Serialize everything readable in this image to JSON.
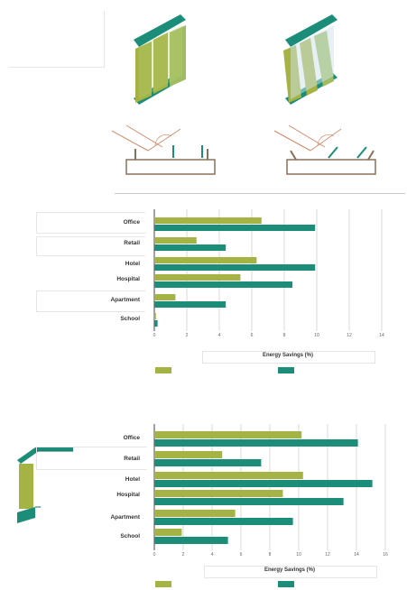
{
  "colors": {
    "olive": "#a4b344",
    "teal": "#1c8d79",
    "dark_teal": "#0e6e5e",
    "window_green": "#9fbd60",
    "sun_line": "#d18a6a"
  },
  "illustrations": {
    "left_icon": "vertical-fins-window-icon",
    "right_icon": "angled-fins-window-icon",
    "left_section": "fin-section-sun-angle-icon",
    "right_section": "angled-fin-section-sun-angle-icon",
    "bottom_left_icon": "overhang-fin-section-icon"
  },
  "chart_data": [
    {
      "type": "bar",
      "orientation": "horizontal",
      "categories": [
        "Office",
        "Retail",
        "Hotel",
        "Hospital",
        "Apartment",
        "School"
      ],
      "series": [
        {
          "name": "",
          "values": [
            6.6,
            2.6,
            6.3,
            5.3,
            1.3,
            0.1
          ]
        },
        {
          "name": "",
          "values": [
            9.9,
            4.4,
            9.9,
            8.5,
            4.4,
            0.2
          ]
        }
      ],
      "xlim": [
        0,
        14
      ],
      "xticks": [
        "0",
        "2",
        "4",
        "6",
        "8",
        "10",
        "12",
        "14"
      ],
      "xlabel": "Energy Savings (%)",
      "grid": "vertical"
    },
    {
      "type": "bar",
      "orientation": "horizontal",
      "categories": [
        "Office",
        "Retail",
        "Hotel",
        "Hospital",
        "Apartment",
        "School"
      ],
      "series": [
        {
          "name": "",
          "values": [
            10.2,
            4.7,
            10.3,
            8.9,
            5.6,
            1.9
          ]
        },
        {
          "name": "",
          "values": [
            14.1,
            7.4,
            15.1,
            13.1,
            9.6,
            5.1
          ]
        }
      ],
      "xlim": [
        0,
        16
      ],
      "xticks": [
        "0",
        "2",
        "4",
        "6",
        "8",
        "10",
        "12",
        "14",
        "16"
      ],
      "xlabel": "Energy Savings (%)",
      "grid": "vertical"
    }
  ]
}
